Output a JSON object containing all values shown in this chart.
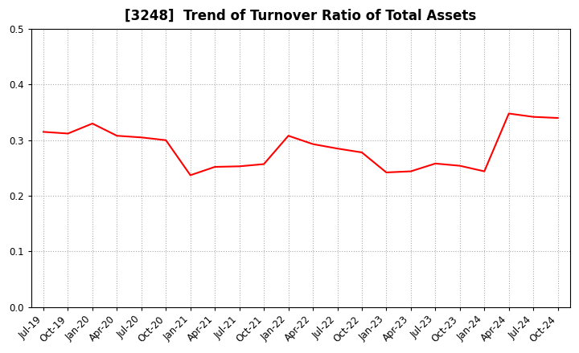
{
  "title": "[3248]  Trend of Turnover Ratio of Total Assets",
  "x_labels": [
    "Jul-19",
    "Oct-19",
    "Jan-20",
    "Apr-20",
    "Jul-20",
    "Oct-20",
    "Jan-21",
    "Apr-21",
    "Jul-21",
    "Oct-21",
    "Jan-22",
    "Apr-22",
    "Jul-22",
    "Oct-22",
    "Jan-23",
    "Apr-23",
    "Jul-23",
    "Oct-23",
    "Jan-24",
    "Apr-24",
    "Jul-24",
    "Oct-24"
  ],
  "y_values": [
    0.315,
    0.312,
    0.33,
    0.308,
    0.305,
    0.3,
    0.237,
    0.252,
    0.253,
    0.257,
    0.308,
    0.293,
    0.285,
    0.278,
    0.242,
    0.244,
    0.258,
    0.254,
    0.244,
    0.348,
    0.342,
    0.34
  ],
  "line_color": "#FF0000",
  "line_width": 1.5,
  "ylim": [
    0.0,
    0.5
  ],
  "yticks": [
    0.0,
    0.1,
    0.2,
    0.3,
    0.4,
    0.5
  ],
  "grid_color": "#aaaaaa",
  "background_color": "#ffffff",
  "title_fontsize": 12,
  "tick_fontsize": 8.5,
  "label_rotation": 45,
  "spine_color": "#000000"
}
